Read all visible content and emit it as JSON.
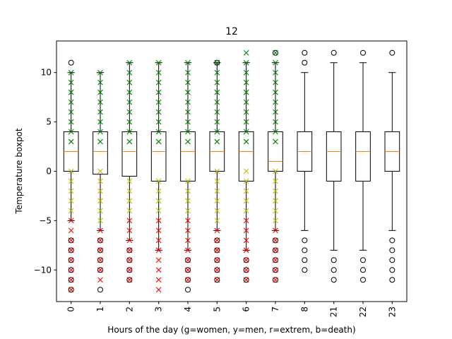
{
  "chart_data": {
    "type": "boxplot",
    "title": "12",
    "xlabel": "Hours of the day (g=women, y=men, r=extrem, b=death)",
    "ylabel": "Temperature boxpot",
    "ylim": [
      -13.2,
      13.2
    ],
    "yticks": [
      -10,
      -5,
      0,
      5,
      10
    ],
    "categories": [
      "0",
      "1",
      "2",
      "3",
      "4",
      "5",
      "6",
      "7",
      "8",
      "21",
      "22",
      "23"
    ],
    "boxes": [
      {
        "q1": 0,
        "median": 2,
        "q3": 4,
        "whislo": -5,
        "whishi": 10,
        "fliers": [
          -7,
          -8,
          -9,
          -10,
          -11,
          -12,
          11
        ]
      },
      {
        "q1": -0.3,
        "median": 2,
        "q3": 4,
        "whislo": -6,
        "whishi": 10,
        "fliers": [
          -7,
          -8,
          -9,
          -10,
          -12
        ]
      },
      {
        "q1": -0.5,
        "median": 2,
        "q3": 4,
        "whislo": -7,
        "whishi": 11,
        "fliers": [
          -8,
          -9,
          -10,
          -11
        ]
      },
      {
        "q1": -1,
        "median": 2,
        "q3": 4,
        "whislo": -8,
        "whishi": 11,
        "fliers": []
      },
      {
        "q1": -1,
        "median": 2,
        "q3": 4,
        "whislo": -8,
        "whishi": 11,
        "fliers": [
          -9,
          -10,
          -11,
          -12
        ]
      },
      {
        "q1": 0,
        "median": 2,
        "q3": 4,
        "whislo": -6,
        "whishi": 11,
        "fliers": [
          -7,
          -8,
          -9,
          -10,
          -11,
          11
        ]
      },
      {
        "q1": -1,
        "median": 2,
        "q3": 4,
        "whislo": -8,
        "whishi": 11,
        "fliers": [
          -9,
          -10,
          -11
        ]
      },
      {
        "q1": 0,
        "median": 1,
        "q3": 4,
        "whislo": -6,
        "whishi": 11,
        "fliers": [
          -7,
          -8,
          -9,
          -10,
          -11,
          12
        ]
      },
      {
        "q1": 0,
        "median": 2,
        "q3": 4,
        "whislo": -6,
        "whishi": 10,
        "fliers": [
          -7,
          -8,
          -9,
          -10,
          11,
          12
        ]
      },
      {
        "q1": -1,
        "median": 2,
        "q3": 4,
        "whislo": -8,
        "whishi": 11,
        "fliers": [
          -9,
          -10,
          -11,
          12
        ]
      },
      {
        "q1": -1,
        "median": 2,
        "q3": 4,
        "whislo": -8,
        "whishi": 11,
        "fliers": [
          -9,
          -10,
          -11,
          12
        ]
      },
      {
        "q1": 0,
        "median": 2,
        "q3": 4,
        "whislo": -6,
        "whishi": 10,
        "fliers": [
          -7,
          -8,
          -9,
          -10,
          -11,
          12
        ]
      }
    ],
    "overlay_points": [
      {
        "x": "0",
        "green": [
          3,
          4,
          5,
          6,
          7,
          8,
          9,
          10
        ],
        "yellow": [
          0,
          -1,
          -2,
          -3,
          -4
        ],
        "red": [
          -5,
          -6,
          -7,
          -8,
          -9,
          -10,
          -11,
          -12
        ]
      },
      {
        "x": "1",
        "green": [
          3,
          4,
          5,
          6,
          7,
          8,
          9,
          10
        ],
        "yellow": [
          0,
          -1,
          -2,
          -3,
          -4,
          -5
        ],
        "red": [
          -6,
          -7,
          -8,
          -9,
          -10,
          -11
        ]
      },
      {
        "x": "2",
        "green": [
          3,
          4,
          5,
          6,
          7,
          8,
          9,
          10,
          11
        ],
        "yellow": [
          -1,
          -2,
          -3,
          -4
        ],
        "red": [
          -5,
          -6,
          -7,
          -8,
          -9,
          -10,
          -11
        ]
      },
      {
        "x": "3",
        "green": [
          3,
          4,
          5,
          6,
          7,
          8,
          9,
          10,
          11
        ],
        "yellow": [
          -1,
          -2,
          -3,
          -4
        ],
        "red": [
          -5,
          -6,
          -7,
          -8,
          -9,
          -10,
          -11,
          -12
        ]
      },
      {
        "x": "4",
        "green": [
          3,
          4,
          5,
          6,
          7,
          8,
          9,
          10,
          11
        ],
        "yellow": [
          -1,
          -2,
          -3,
          -4
        ],
        "red": [
          -5,
          -6,
          -7,
          -8,
          -9,
          -10,
          -11
        ]
      },
      {
        "x": "5",
        "green": [
          3,
          4,
          5,
          6,
          7,
          8,
          9,
          10,
          11
        ],
        "yellow": [
          0,
          -1,
          -2,
          -3,
          -4,
          -5
        ],
        "red": [
          -6,
          -7,
          -8,
          -9,
          -10,
          -11
        ]
      },
      {
        "x": "6",
        "green": [
          3,
          4,
          5,
          6,
          7,
          8,
          9,
          10,
          11,
          12
        ],
        "yellow": [
          0,
          -1,
          -2,
          -3,
          -4
        ],
        "red": [
          -5,
          -6,
          -7,
          -8,
          -9,
          -10,
          -11
        ]
      },
      {
        "x": "7",
        "green": [
          3,
          4,
          5,
          6,
          7,
          8,
          9,
          10,
          11,
          12
        ],
        "yellow": [
          0,
          -1,
          -2,
          -3,
          -4,
          -5
        ],
        "red": [
          -6,
          -7,
          -8,
          -9,
          -10,
          -11
        ]
      }
    ],
    "colors": {
      "box": "#000000",
      "median": "#ff7f0e",
      "green": "#008000",
      "yellow": "#bfbf00",
      "red": "#ff0000",
      "dark_x": "#000000"
    },
    "grid": false
  }
}
